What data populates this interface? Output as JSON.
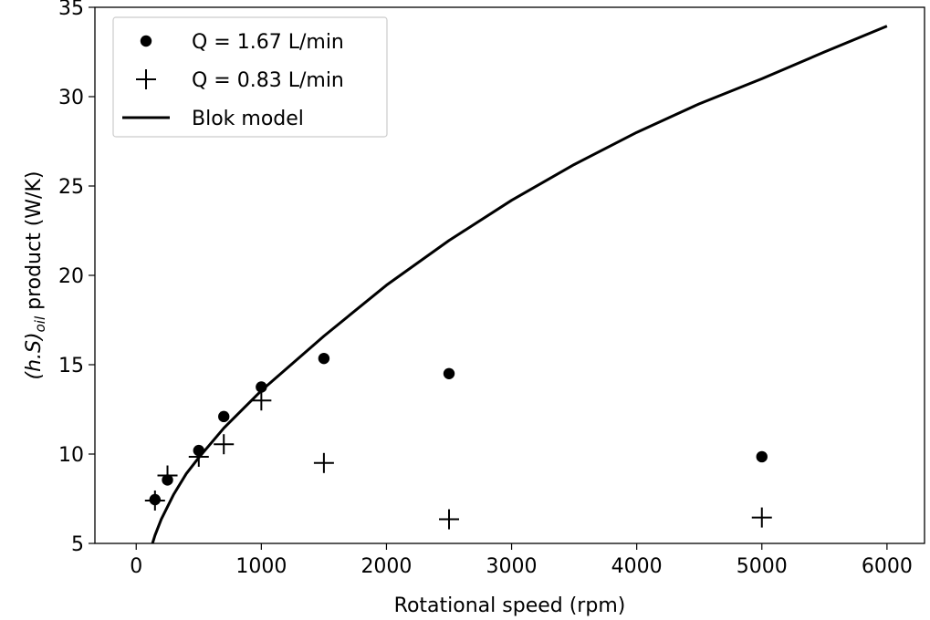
{
  "chart_data": {
    "type": "scatter",
    "xlabel": "Rotational speed (rpm)",
    "ylabel": {
      "prefix": "(h.S)",
      "subscript": "oil",
      "suffix": " product (W/K)"
    },
    "xlim": [
      -330,
      6300
    ],
    "ylim": [
      5,
      35
    ],
    "xticks": [
      0,
      1000,
      2000,
      3000,
      4000,
      5000,
      6000
    ],
    "yticks": [
      5,
      10,
      15,
      20,
      25,
      30,
      35
    ],
    "grid": false,
    "legend_position": "top-left",
    "series": [
      {
        "name": "Q = 1.67 L/min",
        "marker": "circle",
        "color": "#000000",
        "x": [
          150,
          250,
          500,
          700,
          1000,
          1500,
          2500,
          5000
        ],
        "y": [
          7.45,
          8.55,
          10.2,
          12.1,
          13.75,
          15.35,
          14.5,
          9.85
        ]
      },
      {
        "name": "Q = 0.83 L/min",
        "marker": "plus",
        "color": "#000000",
        "x": [
          150,
          250,
          500,
          700,
          1000,
          1500,
          2500,
          5000
        ],
        "y": [
          7.4,
          8.8,
          9.85,
          10.55,
          13.0,
          9.5,
          6.35,
          6.45
        ]
      },
      {
        "name": "Blok model",
        "marker": "line",
        "color": "#000000",
        "x": [
          130,
          150,
          200,
          300,
          400,
          500,
          700,
          1000,
          1500,
          2000,
          2500,
          3000,
          3500,
          4000,
          4500,
          5000,
          5500,
          6000
        ],
        "y": [
          5.0,
          5.45,
          6.35,
          7.75,
          8.9,
          9.8,
          11.45,
          13.55,
          16.6,
          19.45,
          21.95,
          24.2,
          26.2,
          28.0,
          29.6,
          31.0,
          32.5,
          33.95
        ]
      }
    ]
  }
}
